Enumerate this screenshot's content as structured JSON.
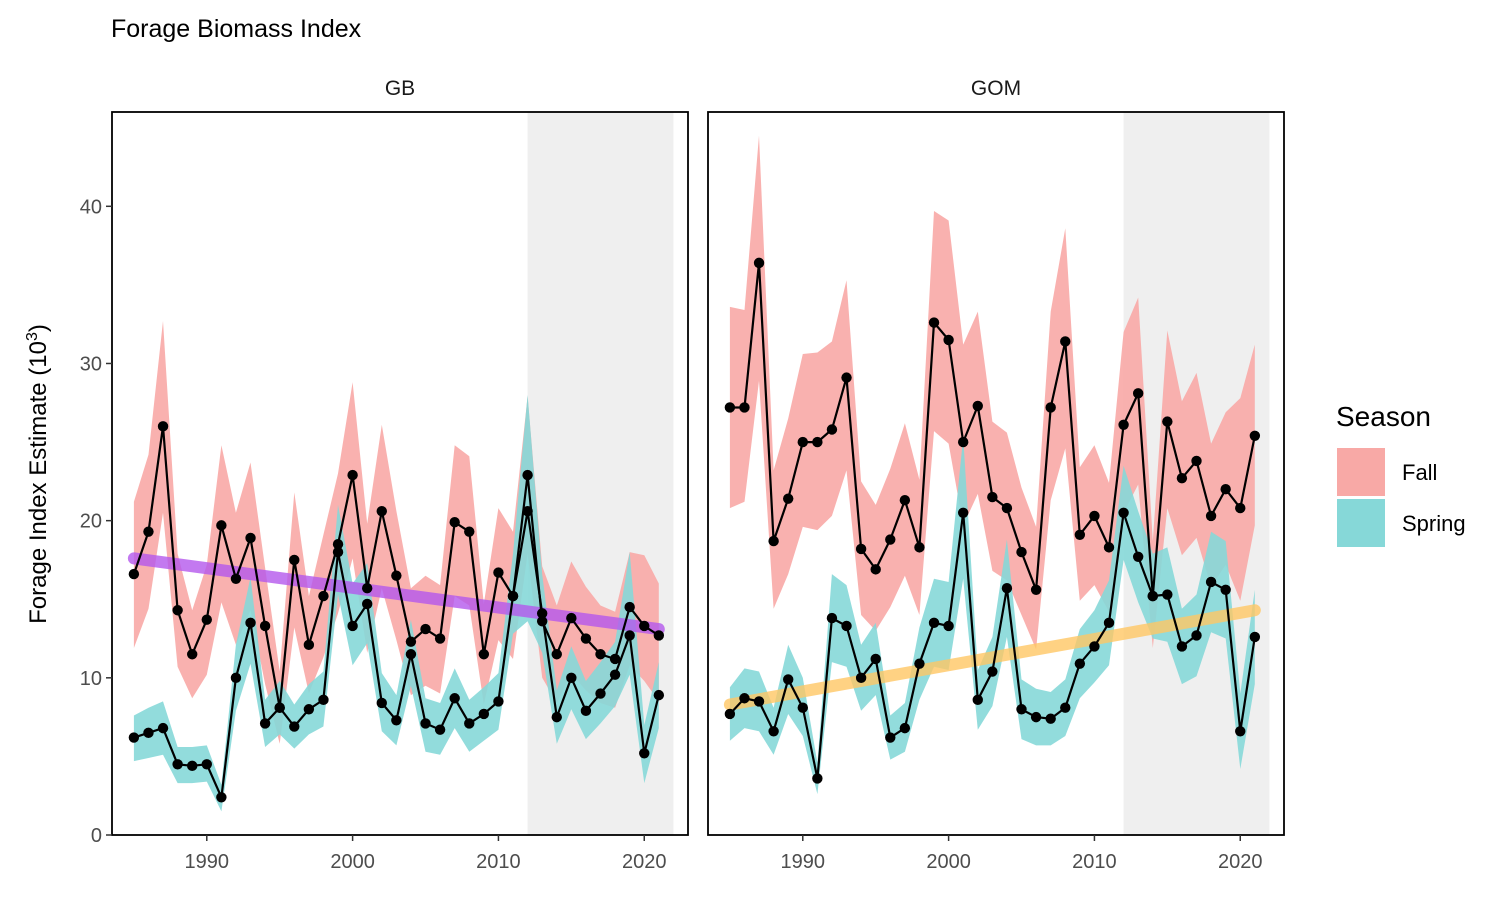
{
  "chart_data": {
    "type": "line",
    "title": "Forage Biomass Index",
    "ylabel": "Forage Index Estimate (10",
    "ylabel_sup": "3",
    "ylabel_close": ")",
    "xlim": [
      1983.5,
      2023
    ],
    "ylim": [
      0,
      46
    ],
    "xticks": [
      1990,
      2000,
      2010,
      2020
    ],
    "yticks": [
      0,
      10,
      20,
      30,
      40
    ],
    "highlight_range": [
      2012,
      2022
    ],
    "highlight_color": "#efefef",
    "grid": false,
    "legend": {
      "title": "Season",
      "position": "right",
      "entries": [
        {
          "label": "Fall",
          "color": "#f8a9a6"
        },
        {
          "label": "Spring",
          "color": "#86d8d8"
        }
      ]
    },
    "panels": [
      {
        "name": "GB",
        "series": [
          {
            "season": "Fall",
            "x": [
              1985,
              1986,
              1987,
              1988,
              1989,
              1990,
              1991,
              1992,
              1993,
              1994,
              1995,
              1996,
              1997,
              1998,
              1999,
              2000,
              2001,
              2002,
              2003,
              2004,
              2005,
              2006,
              2007,
              2008,
              2009,
              2010,
              2011,
              2012,
              2013,
              2014,
              2015,
              2016,
              2017,
              2018,
              2019,
              2020,
              2021
            ],
            "y": [
              16.6,
              19.3,
              26.0,
              14.3,
              11.5,
              13.7,
              19.7,
              16.3,
              18.9,
              13.3,
              8.1,
              17.5,
              12.1,
              15.2,
              18.5,
              22.9,
              15.7,
              20.6,
              16.5,
              12.3,
              13.1,
              12.5,
              19.9,
              19.3,
              11.5,
              16.7,
              15.2,
              22.9,
              13.6,
              11.5,
              13.8,
              12.5,
              11.5,
              11.2,
              14.5,
              13.3,
              12.7
            ],
            "lower": [
              11.9,
              14.4,
              20.5,
              10.7,
              8.7,
              10.2,
              14.8,
              12.1,
              14.3,
              9.6,
              5.8,
              13.2,
              9.0,
              11.3,
              14.1,
              17.6,
              11.6,
              15.7,
              12.4,
              8.9,
              9.5,
              9.0,
              15.2,
              14.6,
              8.3,
              12.4,
              11.2,
              17.9,
              10.0,
              8.4,
              10.3,
              9.2,
              8.4,
              8.1,
              10.8,
              9.8,
              8.5
            ],
            "upper": [
              21.2,
              24.2,
              32.7,
              17.9,
              14.3,
              17.2,
              24.8,
              20.5,
              23.7,
              17.0,
              10.4,
              21.8,
              15.2,
              19.1,
              23.0,
              28.8,
              19.8,
              26.1,
              20.6,
              15.7,
              16.5,
              15.9,
              24.8,
              24.1,
              14.7,
              20.8,
              19.3,
              27.9,
              17.1,
              14.6,
              17.4,
              15.8,
              14.6,
              14.2,
              18.0,
              17.8,
              16.0
            ]
          },
          {
            "season": "Spring",
            "x": [
              1985,
              1986,
              1987,
              1988,
              1989,
              1990,
              1991,
              1992,
              1993,
              1994,
              1995,
              1996,
              1997,
              1998,
              1999,
              2000,
              2001,
              2002,
              2003,
              2004,
              2005,
              2006,
              2007,
              2008,
              2009,
              2010,
              2011,
              2012,
              2013,
              2014,
              2015,
              2016,
              2017,
              2018,
              2019,
              2020,
              2021
            ],
            "y": [
              6.2,
              6.5,
              6.8,
              4.5,
              4.4,
              4.5,
              2.4,
              10.0,
              13.5,
              7.1,
              8.1,
              6.9,
              8.0,
              8.6,
              18.0,
              13.3,
              14.7,
              8.4,
              7.3,
              11.5,
              7.1,
              6.7,
              8.7,
              7.1,
              7.7,
              8.5,
              15.2,
              20.6,
              14.1,
              7.5,
              10.0,
              7.9,
              9.0,
              10.2,
              12.7,
              5.2,
              8.9
            ],
            "lower": [
              4.7,
              4.9,
              5.1,
              3.3,
              3.3,
              3.4,
              1.5,
              7.9,
              10.9,
              5.6,
              6.4,
              5.5,
              6.4,
              6.9,
              15.3,
              10.8,
              12.2,
              6.6,
              5.7,
              9.5,
              5.3,
              5.1,
              6.8,
              5.3,
              6.0,
              6.7,
              12.8,
              13.6,
              11.6,
              5.8,
              8.0,
              6.1,
              7.1,
              8.2,
              10.2,
              3.3,
              6.8
            ],
            "upper": [
              7.6,
              8.1,
              8.5,
              5.6,
              5.6,
              5.7,
              3.2,
              12.1,
              16.4,
              8.6,
              9.8,
              8.3,
              9.6,
              10.4,
              21.0,
              16.0,
              17.3,
              10.3,
              8.9,
              13.7,
              8.7,
              8.4,
              10.6,
              8.6,
              9.4,
              10.3,
              17.9,
              28.0,
              16.6,
              9.2,
              12.0,
              9.8,
              11.0,
              12.3,
              18.0,
              7.0,
              11.0
            ]
          }
        ],
        "trend": {
          "color": "#b457ec",
          "x": [
            1985,
            2021
          ],
          "y": [
            17.6,
            13.1
          ]
        }
      },
      {
        "name": "GOM",
        "series": [
          {
            "season": "Fall",
            "x": [
              1985,
              1986,
              1987,
              1988,
              1989,
              1990,
              1991,
              1992,
              1993,
              1994,
              1995,
              1996,
              1997,
              1998,
              1999,
              2000,
              2001,
              2002,
              2003,
              2004,
              2005,
              2006,
              2007,
              2008,
              2009,
              2010,
              2011,
              2012,
              2013,
              2014,
              2015,
              2016,
              2017,
              2018,
              2019,
              2020,
              2021
            ],
            "y": [
              27.2,
              27.2,
              36.4,
              18.7,
              21.4,
              25.0,
              25.0,
              25.8,
              29.1,
              18.2,
              16.9,
              18.8,
              21.3,
              18.3,
              32.6,
              31.5,
              25.0,
              27.3,
              21.5,
              20.8,
              18.0,
              15.6,
              27.2,
              31.4,
              19.1,
              20.3,
              18.3,
              26.1,
              28.1,
              15.2,
              26.3,
              22.7,
              23.8,
              20.3,
              22.0,
              20.8,
              25.4
            ],
            "lower": [
              20.8,
              21.2,
              28.9,
              14.4,
              16.6,
              19.6,
              19.4,
              20.3,
              23.2,
              14.0,
              13.0,
              14.5,
              16.5,
              14.0,
              25.7,
              24.9,
              19.7,
              21.7,
              16.8,
              16.2,
              14.0,
              11.8,
              21.3,
              24.6,
              14.9,
              15.9,
              14.2,
              20.5,
              22.3,
              11.9,
              20.8,
              17.8,
              18.9,
              15.8,
              17.2,
              14.9,
              19.7
            ],
            "upper": [
              33.6,
              33.4,
              44.5,
              23.2,
              26.5,
              30.6,
              30.7,
              31.4,
              35.3,
              22.5,
              21.0,
              23.3,
              26.2,
              22.6,
              39.7,
              39.1,
              31.2,
              33.3,
              26.3,
              25.6,
              22.1,
              19.6,
              33.3,
              38.6,
              23.4,
              24.8,
              22.4,
              32.0,
              34.2,
              18.7,
              32.1,
              27.6,
              29.4,
              24.9,
              26.9,
              27.8,
              31.2
            ]
          },
          {
            "season": "Spring",
            "x": [
              1985,
              1986,
              1987,
              1988,
              1989,
              1990,
              1991,
              1992,
              1993,
              1994,
              1995,
              1996,
              1997,
              1998,
              1999,
              2000,
              2001,
              2002,
              2003,
              2004,
              2005,
              2006,
              2007,
              2008,
              2009,
              2010,
              2011,
              2012,
              2013,
              2014,
              2015,
              2016,
              2017,
              2018,
              2019,
              2020,
              2021
            ],
            "y": [
              7.7,
              8.7,
              8.5,
              6.6,
              9.9,
              8.1,
              3.6,
              13.8,
              13.3,
              10.0,
              11.2,
              6.2,
              6.8,
              10.9,
              13.5,
              13.3,
              20.5,
              8.6,
              10.4,
              15.7,
              8.0,
              7.5,
              7.4,
              8.1,
              10.9,
              12.0,
              13.5,
              20.5,
              17.7,
              15.2,
              15.3,
              12.0,
              12.7,
              16.1,
              15.6,
              6.6,
              12.6
            ],
            "lower": [
              6.0,
              6.8,
              6.6,
              5.1,
              7.7,
              6.3,
              2.6,
              11.0,
              10.7,
              7.9,
              8.9,
              4.8,
              5.3,
              8.6,
              10.7,
              10.5,
              16.3,
              6.7,
              8.2,
              12.6,
              6.1,
              5.7,
              5.7,
              6.3,
              8.7,
              9.7,
              10.8,
              17.5,
              14.8,
              12.5,
              12.3,
              9.6,
              10.1,
              12.9,
              12.5,
              4.2,
              9.6
            ],
            "upper": [
              9.4,
              10.6,
              10.4,
              8.1,
              12.1,
              10.0,
              4.6,
              16.6,
              15.9,
              12.1,
              13.5,
              7.6,
              8.4,
              13.2,
              16.3,
              16.1,
              25.3,
              10.5,
              12.6,
              18.8,
              9.9,
              9.3,
              9.1,
              9.9,
              13.1,
              14.3,
              16.2,
              23.5,
              20.6,
              17.9,
              18.3,
              14.4,
              15.3,
              19.3,
              18.7,
              9.0,
              15.6
            ]
          }
        ],
        "trend": {
          "color": "#ffc764",
          "x": [
            1985,
            2021
          ],
          "y": [
            8.3,
            14.3
          ]
        }
      }
    ]
  }
}
